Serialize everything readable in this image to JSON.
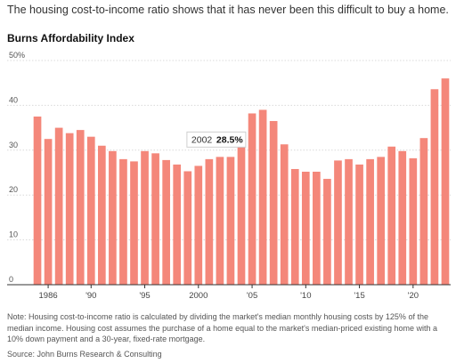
{
  "headline": "The housing cost-to-income ratio shows that it has never been this difficult to buy a home.",
  "note": "Note: Housing cost-to-income ratio is calculated by dividing the market's median monthly housing costs by 125% of the median income. Housing cost assumes the purchase of a home equal to the market's median-priced existing home with a 10% down payment and a 30-year, fixed-rate mortgage.",
  "source": "Source: John Burns Research & Consulting",
  "colors": {
    "bar": "#f4877a",
    "grid": "#d9d9d9",
    "axis": "#333333"
  },
  "chart_data": {
    "type": "bar",
    "title": "Burns Affordability Index",
    "ylim": [
      0,
      50
    ],
    "yticks": [
      0,
      10,
      20,
      30,
      40,
      50
    ],
    "ytick_labels": [
      "0",
      "10",
      "20",
      "30",
      "40",
      "50%"
    ],
    "xtick_years": [
      1986,
      1990,
      1995,
      2000,
      2005,
      2010,
      2015,
      2020
    ],
    "xtick_labels": [
      "1986",
      "'90",
      "'95",
      "2000",
      "'05",
      "'10",
      "'15",
      "'20"
    ],
    "grid": true,
    "categories": [
      1985,
      1986,
      1987,
      1988,
      1989,
      1990,
      1991,
      1992,
      1993,
      1994,
      1995,
      1996,
      1997,
      1998,
      1999,
      2000,
      2001,
      2002,
      2003,
      2004,
      2005,
      2006,
      2007,
      2008,
      2009,
      2010,
      2011,
      2012,
      2013,
      2014,
      2015,
      2016,
      2017,
      2018,
      2019,
      2020,
      2021,
      2022,
      2023
    ],
    "values": [
      37.5,
      32.5,
      35.0,
      33.8,
      34.5,
      33.0,
      31.0,
      29.8,
      28.0,
      27.5,
      29.8,
      29.3,
      27.8,
      26.8,
      25.3,
      26.5,
      28.0,
      28.5,
      28.5,
      32.0,
      38.2,
      39.0,
      36.5,
      31.3,
      25.8,
      25.2,
      25.2,
      23.6,
      27.7,
      28.0,
      26.8,
      28.0,
      28.5,
      30.8,
      29.8,
      28.2,
      32.7,
      43.6,
      46.0
    ],
    "tooltip": {
      "year": "2002",
      "value": "28.5%"
    }
  }
}
